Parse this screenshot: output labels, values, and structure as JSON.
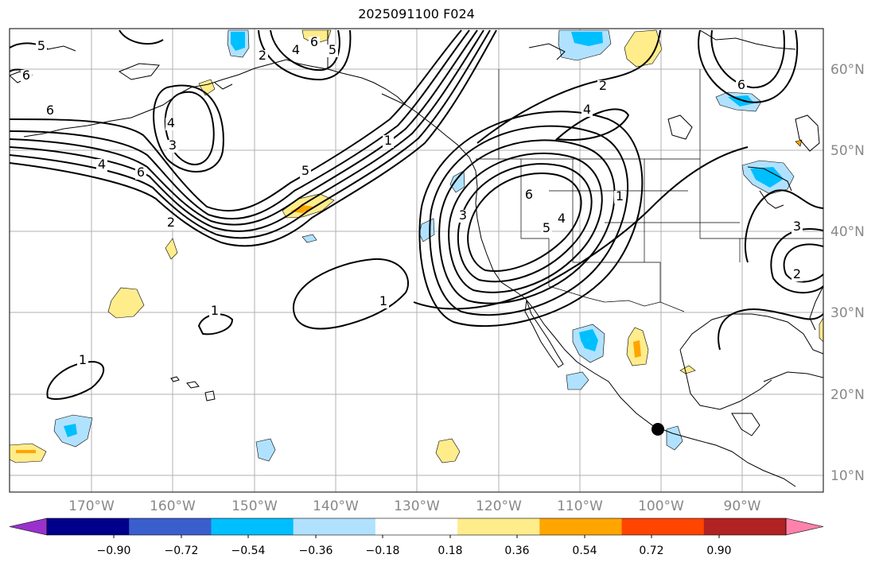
{
  "title": "2025091100 F024",
  "longitude_labels": [
    "170°W",
    "160°W",
    "150°W",
    "140°W",
    "130°W",
    "120°W",
    "110°W",
    "100°W",
    "90°W"
  ],
  "latitude_labels": [
    "60°N",
    "50°N",
    "40°N",
    "30°N",
    "20°N",
    "10°N"
  ],
  "colorbar": {
    "colors": [
      "#9932cc",
      "#00008b",
      "#3a5fcd",
      "#00bfff",
      "#b0e2ff",
      "#ffffff",
      "#ffec8b",
      "#ffa500",
      "#ff4500",
      "#b22222",
      "#ff82ab"
    ],
    "tick_labels": [
      "−0.90",
      "−0.72",
      "−0.54",
      "−0.36",
      "−0.18",
      "0.18",
      "0.36",
      "0.54",
      "0.72",
      "0.90"
    ]
  },
  "contour_labels": [
    "5",
    "6",
    "6",
    "4",
    "3",
    "4",
    "6",
    "2",
    "5",
    "2",
    "4",
    "6",
    "1",
    "5",
    "1",
    "1",
    "1",
    "3",
    "6",
    "5",
    "4",
    "1",
    "2",
    "4",
    "6",
    "3",
    "2"
  ]
}
